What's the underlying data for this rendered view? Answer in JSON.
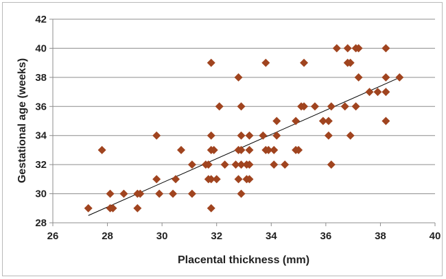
{
  "chart_data": {
    "type": "scatter",
    "xlabel": "Placental thickness (mm)",
    "ylabel": "Gestational age (weeks)",
    "xlim": [
      26,
      40
    ],
    "ylim": [
      28,
      42
    ],
    "xticks": [
      26,
      28,
      30,
      32,
      34,
      36,
      38,
      40
    ],
    "yticks": [
      28,
      30,
      32,
      34,
      36,
      38,
      40,
      42
    ],
    "grid": "horizontal",
    "marker": "diamond",
    "marker_color": "#a0441f",
    "trendline": {
      "x": [
        27.3,
        38.6
      ],
      "y": [
        28.5,
        37.9
      ],
      "color": "#000000"
    },
    "points": [
      [
        27.3,
        29
      ],
      [
        27.8,
        33
      ],
      [
        28.1,
        30
      ],
      [
        28.1,
        29
      ],
      [
        28.2,
        29
      ],
      [
        28.6,
        30
      ],
      [
        29.1,
        29
      ],
      [
        29.1,
        30
      ],
      [
        29.2,
        30
      ],
      [
        29.8,
        34
      ],
      [
        29.8,
        31
      ],
      [
        29.9,
        30
      ],
      [
        30.4,
        30
      ],
      [
        30.5,
        31
      ],
      [
        30.7,
        33
      ],
      [
        31.1,
        32
      ],
      [
        31.1,
        30
      ],
      [
        31.6,
        32
      ],
      [
        31.7,
        31
      ],
      [
        31.7,
        32
      ],
      [
        31.8,
        31
      ],
      [
        31.8,
        29
      ],
      [
        31.8,
        34
      ],
      [
        31.8,
        39
      ],
      [
        31.8,
        33
      ],
      [
        31.9,
        33
      ],
      [
        32.0,
        31
      ],
      [
        32.1,
        36
      ],
      [
        32.3,
        32
      ],
      [
        32.7,
        32
      ],
      [
        32.8,
        31
      ],
      [
        32.8,
        33
      ],
      [
        32.8,
        38
      ],
      [
        32.9,
        32
      ],
      [
        32.9,
        33
      ],
      [
        32.9,
        34
      ],
      [
        32.9,
        36
      ],
      [
        32.9,
        30
      ],
      [
        33.1,
        32
      ],
      [
        33.1,
        31
      ],
      [
        33.2,
        33
      ],
      [
        33.2,
        34
      ],
      [
        33.2,
        32
      ],
      [
        33.2,
        31
      ],
      [
        33.7,
        34
      ],
      [
        33.8,
        39
      ],
      [
        33.8,
        33
      ],
      [
        33.9,
        33
      ],
      [
        34.1,
        33
      ],
      [
        34.1,
        32
      ],
      [
        34.2,
        35
      ],
      [
        34.2,
        34
      ],
      [
        34.5,
        32
      ],
      [
        34.9,
        35
      ],
      [
        34.9,
        33
      ],
      [
        35.0,
        33
      ],
      [
        35.1,
        36
      ],
      [
        35.2,
        36
      ],
      [
        35.2,
        39
      ],
      [
        35.6,
        36
      ],
      [
        35.9,
        35
      ],
      [
        36.1,
        35
      ],
      [
        36.1,
        34
      ],
      [
        36.2,
        36
      ],
      [
        36.2,
        32
      ],
      [
        36.4,
        40
      ],
      [
        36.7,
        36
      ],
      [
        36.8,
        40
      ],
      [
        36.8,
        39
      ],
      [
        36.9,
        39
      ],
      [
        36.9,
        34
      ],
      [
        37.1,
        40
      ],
      [
        37.1,
        36
      ],
      [
        37.2,
        40
      ],
      [
        37.2,
        38
      ],
      [
        37.6,
        37
      ],
      [
        37.9,
        37
      ],
      [
        38.2,
        40
      ],
      [
        38.2,
        38
      ],
      [
        38.2,
        37
      ],
      [
        38.2,
        35
      ],
      [
        38.7,
        38
      ]
    ]
  }
}
